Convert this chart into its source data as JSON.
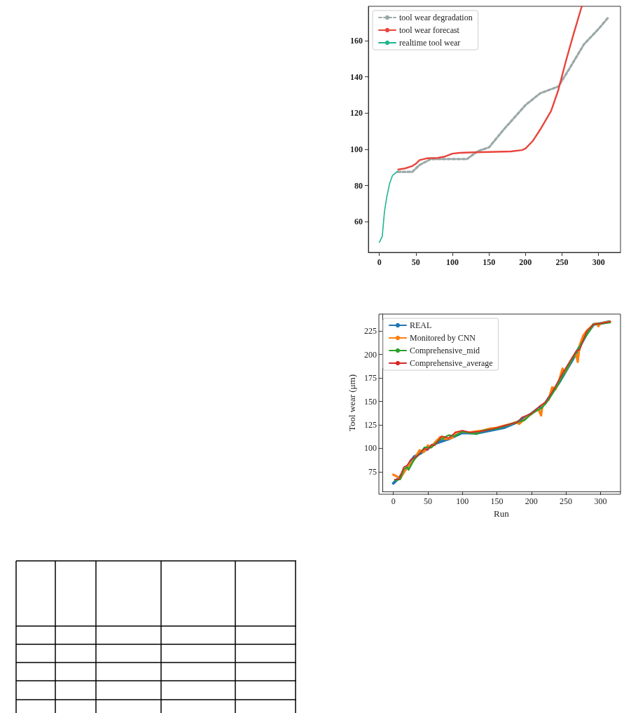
{
  "chart_data": [
    {
      "type": "line",
      "legend": "top left",
      "marker": "none",
      "xlim": [
        -15,
        330
      ],
      "ylim": [
        43,
        179
      ],
      "xticks": [
        0,
        50,
        100,
        150,
        200,
        250,
        300
      ],
      "yticks": [
        60,
        80,
        100,
        120,
        140,
        160
      ],
      "series": [
        {
          "name": "tool wear degradation",
          "color": "#9aa8a8",
          "line_style": "dashed",
          "x": [
            25,
            45,
            55,
            70,
            90,
            120,
            135,
            150,
            170,
            200,
            220,
            245,
            260,
            280,
            300,
            314
          ],
          "values": [
            87.5,
            87.5,
            91.3,
            94.5,
            94.6,
            94.6,
            99,
            101,
            110.8,
            124.4,
            130.9,
            134.7,
            144.5,
            158,
            166.5,
            173.2
          ]
        },
        {
          "name": "tool wear forecast",
          "color": "#e8453c",
          "x": [
            26,
            35,
            45,
            50,
            55,
            65,
            80,
            90,
            100,
            110,
            130,
            150,
            180,
            195,
            200,
            210,
            220,
            235,
            245,
            255,
            265,
            277
          ],
          "values": [
            88.8,
            89.4,
            90.7,
            92,
            94,
            95,
            95.2,
            96,
            97.6,
            98,
            98.3,
            98.5,
            98.8,
            99.5,
            100.4,
            104.6,
            110.8,
            121.1,
            132.8,
            148.3,
            162.6,
            179
          ]
        },
        {
          "name": "realtime tool wear",
          "color": "#1fb58f",
          "x": [
            0,
            4,
            7,
            10,
            14,
            18,
            25
          ],
          "values": [
            48.6,
            51.8,
            65.4,
            73.2,
            81,
            85.5,
            87.8
          ]
        }
      ]
    },
    {
      "type": "line",
      "legend": "top left",
      "marker": "none",
      "xlabel": "Run",
      "ylabel": "Tool wear (μm)",
      "xlim": [
        -16,
        329
      ],
      "ylim": [
        54,
        243
      ],
      "xticks": [
        0,
        50,
        100,
        150,
        200,
        250,
        300
      ],
      "yticks": [
        75,
        100,
        125,
        150,
        175,
        200,
        225
      ],
      "series": [
        {
          "name": "REAL",
          "color": "#1f77b4",
          "x": [
            0,
            10,
            20,
            30,
            40,
            60,
            80,
            100,
            120,
            140,
            160,
            180,
            200,
            220,
            240,
            260,
            280,
            290,
            300,
            313
          ],
          "values": [
            62.7,
            70,
            80,
            91,
            95,
            105,
            110,
            116.7,
            116,
            119,
            122,
            128,
            137,
            148,
            170,
            195,
            222,
            232,
            233,
            235
          ]
        },
        {
          "name": "Monitored by CNN",
          "color": "#ff7f0e",
          "x": [
            0,
            5,
            10,
            20,
            30,
            38,
            44,
            50,
            55,
            60,
            68,
            75,
            85,
            90,
            100,
            110,
            120,
            130,
            140,
            150,
            160,
            170,
            178,
            182,
            190,
            200,
            210,
            214,
            216,
            225,
            230,
            235,
            240,
            245,
            248,
            255,
            260,
            265,
            267,
            270,
            275,
            280,
            290,
            295,
            297,
            300,
            314
          ],
          "values": [
            72,
            70,
            68,
            80,
            88,
            98,
            96,
            103,
            101,
            106,
            112,
            110,
            111,
            117,
            118,
            117,
            118,
            119,
            121,
            122,
            124,
            126,
            128,
            126,
            131,
            137,
            142,
            135,
            146,
            152,
            165,
            163,
            172,
            185,
            180,
            190,
            197,
            200,
            192,
            210,
            220,
            225,
            232,
            233,
            230,
            233,
            235
          ]
        },
        {
          "name": "Comprehensive_mid",
          "color": "#2ca02c",
          "x": [
            2,
            10,
            15,
            20,
            22,
            30,
            40,
            45,
            55,
            65,
            80,
            90,
            100,
            120,
            130,
            150,
            170,
            190,
            200,
            215,
            225,
            240,
            260,
            275,
            290,
            314
          ],
          "values": [
            66,
            67,
            78,
            80,
            77,
            88,
            96,
            101,
            101,
            108,
            114,
            113,
            118,
            115,
            119,
            121,
            126,
            130,
            137,
            143,
            152,
            170,
            196,
            215,
            232,
            234
          ]
        },
        {
          "name": "Comprehensive_average",
          "color": "#d62728",
          "x": [
            2,
            8,
            15,
            20,
            25,
            35,
            45,
            50,
            55,
            60,
            70,
            80,
            90,
            100,
            110,
            125,
            140,
            160,
            180,
            186,
            200,
            212,
            220,
            230,
            245,
            260,
            265,
            270,
            280,
            290,
            300,
            314
          ],
          "values": [
            67,
            67,
            80,
            82,
            88,
            92,
            100,
            98,
            104,
            103,
            113,
            111,
            117,
            119,
            117,
            118,
            120,
            124,
            128,
            133,
            137,
            145,
            149,
            160,
            180,
            198,
            204,
            205,
            225,
            232,
            233,
            235
          ]
        }
      ]
    }
  ]
}
